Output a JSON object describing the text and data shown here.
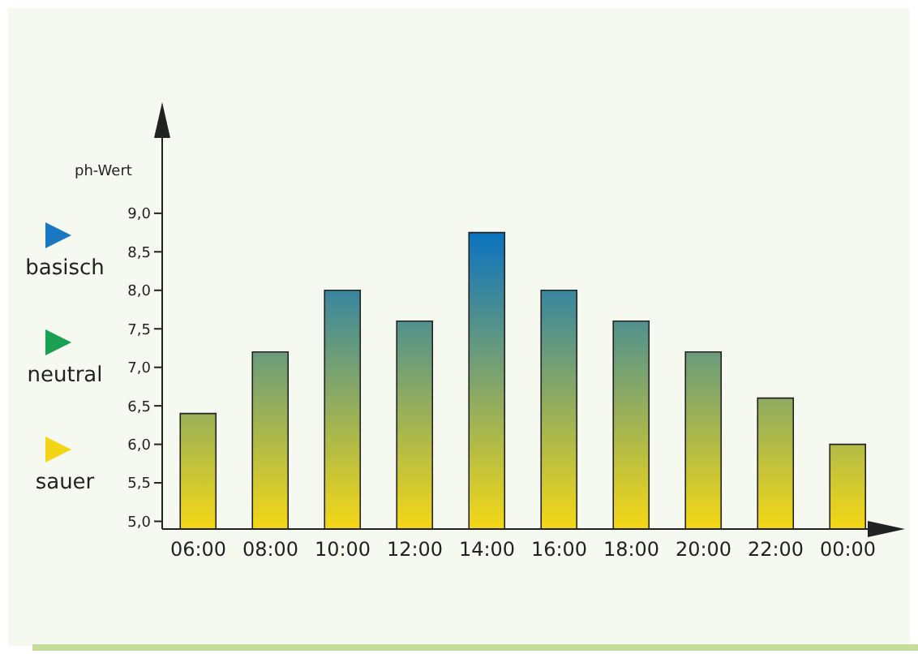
{
  "chart_data": {
    "type": "bar",
    "ylabel": "ph-Wert",
    "categories": [
      "06:00",
      "08:00",
      "10:00",
      "12:00",
      "14:00",
      "16:00",
      "18:00",
      "20:00",
      "22:00",
      "00:00"
    ],
    "values": [
      6.4,
      7.2,
      8.0,
      7.6,
      8.75,
      8.0,
      7.6,
      7.2,
      6.6,
      6.0
    ],
    "ylim": [
      4.9,
      10.4
    ],
    "yticks": [
      {
        "value": 5,
        "label": "5,0"
      },
      {
        "value": 5.5,
        "label": "5,5"
      },
      {
        "value": 6,
        "label": "6,0"
      },
      {
        "value": 6.5,
        "label": "6,5"
      },
      {
        "value": 7,
        "label": "7,0"
      },
      {
        "value": 7.5,
        "label": "7,5"
      },
      {
        "value": 8,
        "label": "8,0"
      },
      {
        "value": 8.5,
        "label": "8,5"
      },
      {
        "value": 9,
        "label": "9,0"
      }
    ],
    "grid": false,
    "annotations": [
      "basisch",
      "neutral",
      "sauer"
    ]
  }
}
